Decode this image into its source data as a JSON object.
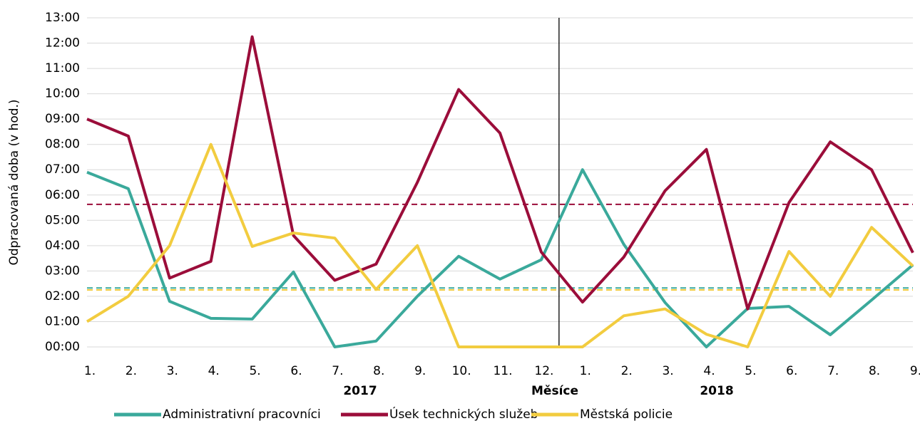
{
  "chart_data": {
    "type": "line",
    "y_label": "Odpracovaná doba (v hod.)",
    "categories": [
      "1.",
      "2.",
      "3.",
      "4.",
      "5.",
      "6.",
      "7.",
      "8.",
      "9.",
      "10.",
      "11.",
      "12.",
      "1.",
      "2.",
      "3.",
      "4.",
      "5.",
      "6.",
      "7.",
      "8.",
      "9."
    ],
    "groups": [
      {
        "label": "2017",
        "start": 0,
        "end": 11
      },
      {
        "label": "Měsíce"
      },
      {
        "label": "2018",
        "start": 12,
        "end": 20
      }
    ],
    "ylim": [
      0,
      13
    ],
    "yticks": [
      {
        "value": 0,
        "label": "00:00"
      },
      {
        "value": 1,
        "label": "01:00"
      },
      {
        "value": 2,
        "label": "02:00"
      },
      {
        "value": 3,
        "label": "03:00"
      },
      {
        "value": 4,
        "label": "04:00"
      },
      {
        "value": 5,
        "label": "05:00"
      },
      {
        "value": 6,
        "label": "06:00"
      },
      {
        "value": 7,
        "label": "07:00"
      },
      {
        "value": 8,
        "label": "08:00"
      },
      {
        "value": 9,
        "label": "09:00"
      },
      {
        "value": 10,
        "label": "10:00"
      },
      {
        "value": 11,
        "label": "11:00"
      },
      {
        "value": 12,
        "label": "12:00"
      },
      {
        "value": 13,
        "label": "13:00"
      }
    ],
    "grid": true,
    "legend": "bottom",
    "series": [
      {
        "name": "Administrativní pracovníci",
        "color": "#3aa99b",
        "average": 2.33,
        "values": [
          6.9,
          6.25,
          1.8,
          1.13,
          1.1,
          2.96,
          0,
          0.23,
          2.0,
          3.58,
          2.68,
          3.44,
          7.0,
          4.05,
          1.75,
          0,
          1.52,
          1.6,
          0.48,
          1.85,
          3.24
        ]
      },
      {
        "name": "Úsek technických služeb",
        "color": "#9b0d3a",
        "average": 5.63,
        "values": [
          9.0,
          8.33,
          2.72,
          3.38,
          12.25,
          4.4,
          2.63,
          3.27,
          6.5,
          10.17,
          8.45,
          3.75,
          1.77,
          3.55,
          6.17,
          7.8,
          1.5,
          5.7,
          8.1,
          7.0,
          3.72
        ]
      },
      {
        "name": "Městská policie",
        "color": "#f2cc3f",
        "average": 2.25,
        "values": [
          1.0,
          2.0,
          4.0,
          8.0,
          3.97,
          4.5,
          4.3,
          2.27,
          4.0,
          0,
          0,
          0,
          0,
          1.23,
          1.5,
          0.5,
          0,
          3.77,
          2.0,
          4.72,
          3.2
        ]
      }
    ]
  }
}
